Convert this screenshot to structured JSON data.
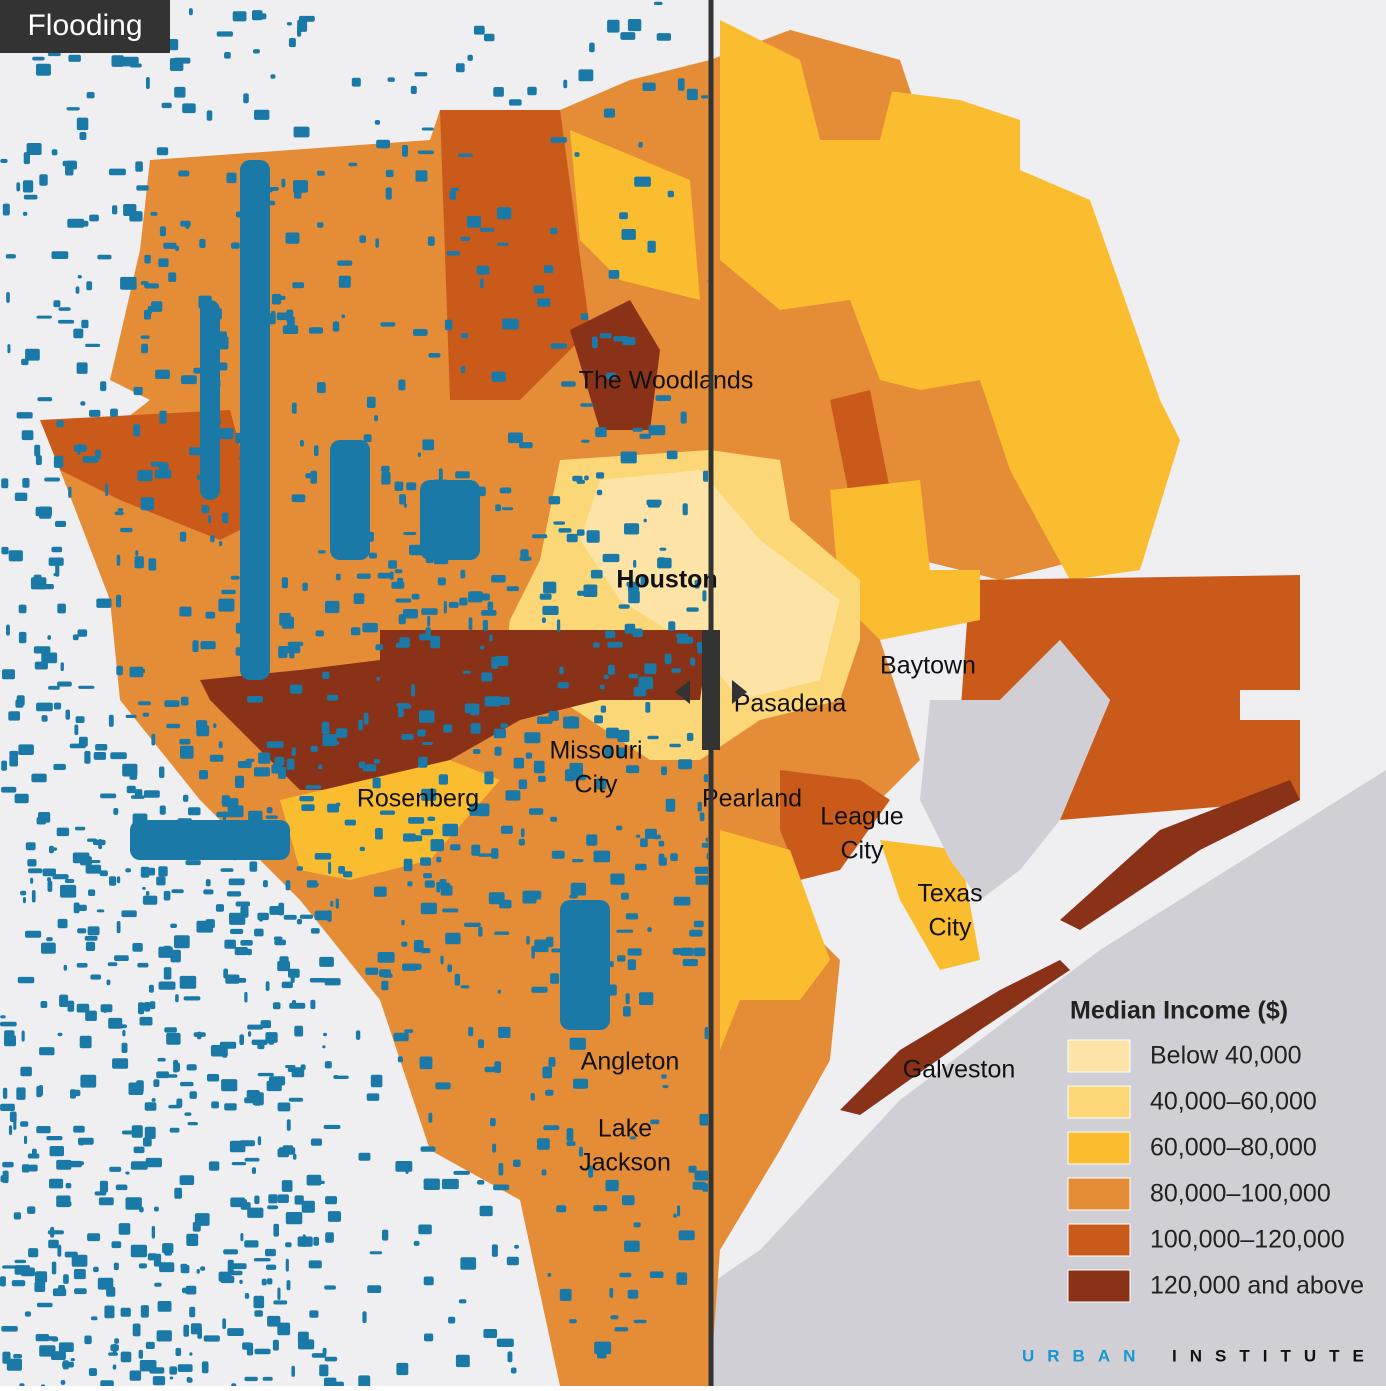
{
  "badge": "Flooding",
  "places": [
    {
      "lines": [
        "The Woodlands"
      ],
      "x": null
    },
    {
      "lines": [
        "Houston"
      ]
    },
    {
      "lines": [
        "Baytown"
      ]
    },
    {
      "lines": [
        "Pasadena"
      ]
    },
    {
      "lines": [
        "Missouri",
        "City"
      ]
    },
    {
      "lines": [
        "Rosenberg"
      ]
    },
    {
      "lines": [
        "Pearland"
      ]
    },
    {
      "lines": [
        "League",
        "City"
      ]
    },
    {
      "lines": [
        "Texas",
        "City"
      ]
    },
    {
      "lines": [
        "Angleton"
      ]
    },
    {
      "lines": [
        "Lake",
        "Jackson"
      ]
    },
    {
      "lines": [
        "Galveston"
      ]
    }
  ],
  "legend": {
    "title": "Median Income ($)",
    "items": [
      {
        "label": "Below 40,000",
        "color": "#fde4a6"
      },
      {
        "label": "40,000–60,000",
        "color": "#fcd777"
      },
      {
        "label": "60,000–80,000",
        "color": "#fbbd30"
      },
      {
        "label": "80,000–100,000",
        "color": "#e58c37"
      },
      {
        "label": "100,000–120,000",
        "color": "#c95a1a"
      },
      {
        "label": "120,000 and above",
        "color": "#8a3218"
      }
    ]
  },
  "brand": [
    "URBAN",
    "INSTITUTE"
  ]
}
